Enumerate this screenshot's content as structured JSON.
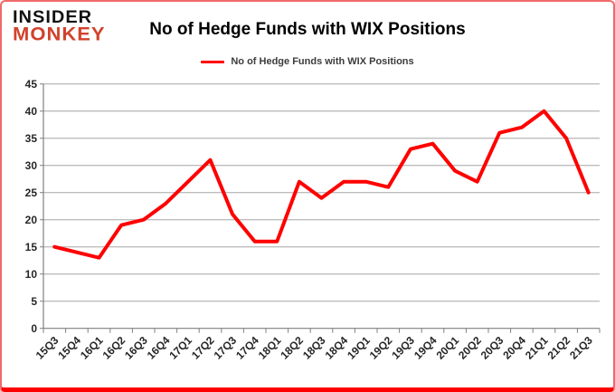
{
  "logo": {
    "line1": "INSIDER",
    "line2": "MONKEY"
  },
  "title": "No of Hedge Funds with WIX Positions",
  "legend": {
    "label": "No of Hedge Funds with WIX Positions"
  },
  "colors": {
    "brand_red": "#d2422c",
    "series_red": "#ff0000",
    "grid_gray": "#a6a6a6",
    "axis_gray": "#808080",
    "label_dark": "#262626"
  },
  "chart_data": {
    "type": "line",
    "title": "No of Hedge Funds with WIX Positions",
    "categories": [
      "15Q3",
      "15Q4",
      "16Q1",
      "16Q2",
      "16Q3",
      "16Q4",
      "17Q1",
      "17Q2",
      "17Q3",
      "17Q4",
      "18Q1",
      "18Q2",
      "18Q3",
      "18Q4",
      "19Q1",
      "19Q2",
      "19Q3",
      "19Q4",
      "20Q1",
      "20Q2",
      "20Q3",
      "20Q4",
      "21Q1",
      "21Q2",
      "21Q3"
    ],
    "series": [
      {
        "name": "No of Hedge Funds with WIX Positions",
        "color": "#ff0000",
        "values": [
          15,
          14,
          13,
          19,
          20,
          23,
          27,
          31,
          21,
          16,
          16,
          27,
          24,
          27,
          27,
          26,
          33,
          34,
          29,
          27,
          36,
          37,
          40,
          35,
          25
        ]
      }
    ],
    "xlabel": "",
    "ylabel": "",
    "ylim": [
      0,
      45
    ],
    "ytick_step": 5,
    "grid": true,
    "legend_position": "top"
  }
}
